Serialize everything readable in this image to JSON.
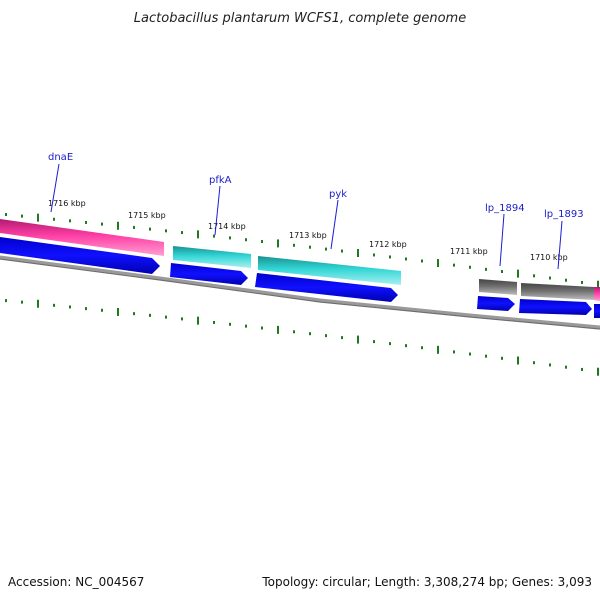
{
  "title": "Lactobacillus plantarum WCFS1, complete genome",
  "footer": {
    "accession": "Accession: NC_004567",
    "summary": "Topology: circular; Length: 3,308,274 bp; Genes: 3,093"
  },
  "scale_labels": [
    "1716 kbp",
    "1715 kbp",
    "1714 kbp",
    "1713 kbp",
    "1712 kbp",
    "1711 kbp",
    "1710 kbp"
  ],
  "gene_labels": [
    "dnaE",
    "pfkA",
    "pyk",
    "lp_1894",
    "lp_1893"
  ],
  "colors": {
    "backbone": "#7a7a7a",
    "tick": "#1f7a1f",
    "label_line": "#1c1cd6",
    "label_text": "#1c1cc8",
    "magenta": "#ee3399",
    "cyan": "#33cccc",
    "gray_gene": "#666666",
    "blue_cds": "#0000ee"
  }
}
